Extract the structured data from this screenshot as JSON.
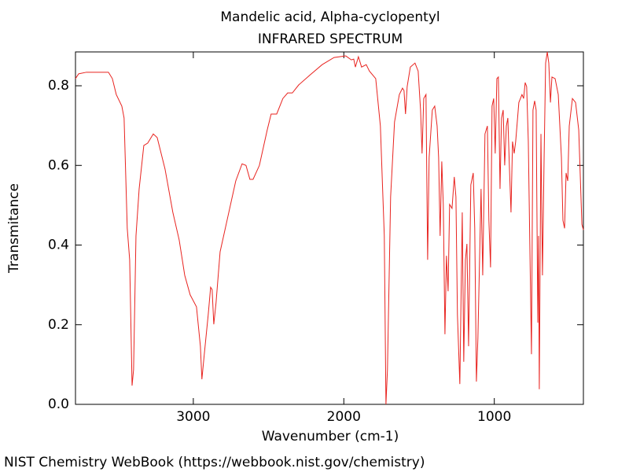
{
  "chart_data": {
    "type": "line",
    "title": "Mandelic acid, Alpha-cyclopentyl",
    "subtitle": "INFRARED SPECTRUM",
    "x_label": "Wavenumber (cm-1)",
    "y_label": "Transmitance",
    "credit": "NIST Chemistry WebBook (https://webbook.nist.gov/chemistry)",
    "xlim": [
      3783,
      408
    ],
    "ylim": [
      0,
      0.885
    ],
    "xticks": [
      3000,
      2000,
      1000
    ],
    "yticks": [
      {
        "value": 0,
        "label": "0.0"
      },
      0.2,
      0.4,
      0.6,
      0.8
    ],
    "grid": false,
    "x": [
      3783,
      3762,
      3710,
      3564,
      3538,
      3512,
      3475,
      3460,
      3439,
      3423,
      3407,
      3397,
      3381,
      3360,
      3329,
      3303,
      3266,
      3240,
      3188,
      3136,
      3094,
      3057,
      3021,
      2979,
      2953,
      2943,
      2927,
      2901,
      2885,
      2875,
      2864,
      2849,
      2822,
      2770,
      2718,
      2676,
      2650,
      2624,
      2603,
      2561,
      2509,
      2483,
      2446,
      2405,
      2373,
      2342,
      2300,
      2222,
      2144,
      2065,
      1987,
      1950,
      1934,
      1923,
      1903,
      1882,
      1851,
      1830,
      1788,
      1757,
      1731,
      1720,
      1710,
      1689,
      1663,
      1631,
      1610,
      1600,
      1590,
      1579,
      1558,
      1527,
      1506,
      1490,
      1480,
      1469,
      1454,
      1443,
      1433,
      1412,
      1396,
      1380,
      1370,
      1360,
      1349,
      1339,
      1328,
      1318,
      1307,
      1297,
      1281,
      1266,
      1255,
      1245,
      1229,
      1213,
      1203,
      1192,
      1182,
      1171,
      1156,
      1140,
      1130,
      1119,
      1109,
      1088,
      1077,
      1062,
      1046,
      1036,
      1025,
      1015,
      1004,
      994,
      983,
      973,
      962,
      952,
      941,
      931,
      920,
      910,
      900,
      889,
      879,
      868,
      858,
      837,
      816,
      805,
      795,
      785,
      774,
      764,
      753,
      743,
      732,
      722,
      711,
      706,
      701,
      690,
      680,
      669,
      659,
      648,
      638,
      627,
      617,
      596,
      575,
      554,
      544,
      533,
      523,
      512,
      502,
      481,
      460,
      439,
      418,
      408
    ],
    "series": [
      {
        "name": "Transmitance",
        "color": "#e8231f",
        "values": [
          0.818,
          0.83,
          0.834,
          0.834,
          0.818,
          0.778,
          0.749,
          0.719,
          0.442,
          0.363,
          0.047,
          0.087,
          0.423,
          0.541,
          0.65,
          0.656,
          0.679,
          0.67,
          0.591,
          0.482,
          0.413,
          0.324,
          0.275,
          0.245,
          0.146,
          0.063,
          0.126,
          0.225,
          0.294,
          0.288,
          0.201,
          0.255,
          0.383,
          0.472,
          0.561,
          0.604,
          0.6,
          0.565,
          0.565,
          0.6,
          0.689,
          0.729,
          0.729,
          0.768,
          0.782,
          0.782,
          0.802,
          0.828,
          0.853,
          0.871,
          0.875,
          0.865,
          0.867,
          0.847,
          0.873,
          0.847,
          0.853,
          0.837,
          0.818,
          0.699,
          0.423,
          0.0,
          0.087,
          0.521,
          0.709,
          0.778,
          0.794,
          0.788,
          0.729,
          0.798,
          0.847,
          0.857,
          0.837,
          0.739,
          0.63,
          0.768,
          0.778,
          0.363,
          0.62,
          0.739,
          0.749,
          0.699,
          0.62,
          0.423,
          0.61,
          0.502,
          0.176,
          0.373,
          0.284,
          0.502,
          0.492,
          0.571,
          0.521,
          0.225,
          0.051,
          0.482,
          0.107,
          0.363,
          0.403,
          0.146,
          0.551,
          0.581,
          0.442,
          0.057,
          0.166,
          0.541,
          0.324,
          0.679,
          0.699,
          0.462,
          0.344,
          0.749,
          0.768,
          0.63,
          0.818,
          0.822,
          0.541,
          0.719,
          0.739,
          0.6,
          0.699,
          0.719,
          0.6,
          0.482,
          0.66,
          0.63,
          0.66,
          0.758,
          0.778,
          0.768,
          0.808,
          0.798,
          0.66,
          0.403,
          0.126,
          0.739,
          0.762,
          0.739,
          0.205,
          0.423,
          0.038,
          0.679,
          0.324,
          0.62,
          0.857,
          0.885,
          0.857,
          0.758,
          0.822,
          0.818,
          0.778,
          0.62,
          0.462,
          0.442,
          0.581,
          0.561,
          0.699,
          0.768,
          0.758,
          0.689,
          0.452,
          0.438
        ]
      }
    ]
  }
}
